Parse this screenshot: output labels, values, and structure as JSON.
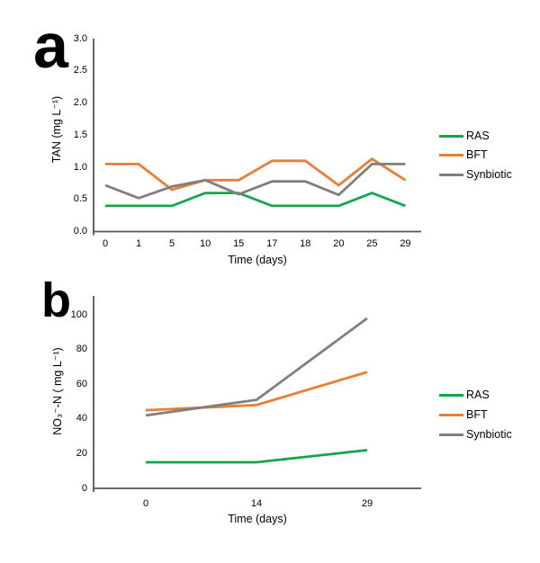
{
  "chart_data": [
    {
      "type": "line",
      "panel_label": "a",
      "title": "",
      "xlabel": "Time (days)",
      "ylabel": "TAN (mg L⁻¹)",
      "categories": [
        "0",
        "1",
        "5",
        "10",
        "15",
        "17",
        "18",
        "20",
        "25",
        "29"
      ],
      "series": [
        {
          "name": "RAS",
          "color": "#14a64a",
          "values": [
            0.4,
            0.4,
            0.4,
            0.6,
            0.6,
            0.4,
            0.4,
            0.4,
            0.6,
            0.4
          ]
        },
        {
          "name": "BFT",
          "color": "#ed7d31",
          "values": [
            1.05,
            1.05,
            0.65,
            0.8,
            0.8,
            1.1,
            1.1,
            0.72,
            1.13,
            0.8
          ]
        },
        {
          "name": "Synbiotic",
          "color": "#7f7f7f",
          "values": [
            0.72,
            0.52,
            0.7,
            0.8,
            0.58,
            0.78,
            0.78,
            0.57,
            1.05,
            1.05
          ]
        }
      ],
      "ylim": [
        0.0,
        3.0
      ],
      "yticks": [
        "3.0",
        "2.5",
        "2.0",
        "1.5",
        "1.0",
        "0.5",
        "0.0"
      ],
      "grid": false,
      "legend_position": "right"
    },
    {
      "type": "line",
      "panel_label": "b",
      "title": "",
      "xlabel": "Time (days)",
      "ylabel": "NO₃⁻-N ( mg L⁻¹)",
      "categories": [
        "0",
        "14",
        "29"
      ],
      "series": [
        {
          "name": "RAS",
          "color": "#14a64a",
          "values": [
            15,
            15,
            22
          ]
        },
        {
          "name": "BFT",
          "color": "#ed7d31",
          "values": [
            45,
            48,
            67
          ]
        },
        {
          "name": "Synbiotic",
          "color": "#7f7f7f",
          "values": [
            42,
            51,
            98
          ]
        }
      ],
      "ylim": [
        0,
        100
      ],
      "yticks": [
        "100",
        "80",
        "60",
        "40",
        "20",
        "0"
      ],
      "grid": false,
      "legend_position": "right"
    }
  ],
  "style": {
    "axis_color": "#555555",
    "text_color": "#000000",
    "background": "#ffffff"
  }
}
